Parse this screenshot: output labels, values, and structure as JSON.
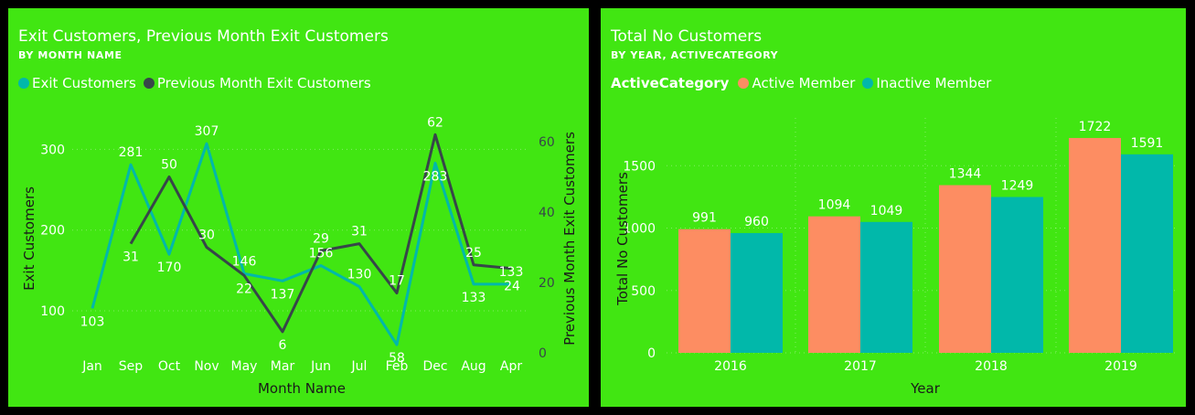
{
  "chart_data": [
    {
      "type": "line",
      "title": "Exit Customers, Previous Month Exit Customers",
      "subtitle": "BY MONTH NAME",
      "xlabel": "Month Name",
      "ylabel": "Exit Customers",
      "y2label": "Previous Month Exit Customers",
      "categories": [
        "Jan",
        "Sep",
        "Oct",
        "Nov",
        "May",
        "Mar",
        "Jun",
        "Jul",
        "Feb",
        "Dec",
        "Aug",
        "Apr"
      ],
      "ylim": [
        60,
        315
      ],
      "y2lim": [
        0,
        62
      ],
      "yticks": [
        100,
        200,
        300
      ],
      "y2ticks": [
        0,
        20,
        40,
        60
      ],
      "grid": true,
      "legend_position": "top-left",
      "series": [
        {
          "name": "Exit Customers",
          "color": "#01b8aa",
          "axis": "left",
          "values": [
            103,
            281,
            170,
            307,
            146,
            137,
            156,
            130,
            58,
            283,
            133,
            133
          ]
        },
        {
          "name": "Previous Month Exit Customers",
          "color": "#374649",
          "axis": "right",
          "values": [
            null,
            31,
            50,
            30,
            22,
            6,
            29,
            31,
            17,
            62,
            25,
            24
          ]
        }
      ]
    },
    {
      "type": "bar",
      "title": "Total No Customers",
      "subtitle": "BY YEAR, ACTIVECATEGORY",
      "legend_title": "ActiveCategory",
      "xlabel": "Year",
      "ylabel": "Total No Customers",
      "categories": [
        "2016",
        "2017",
        "2018",
        "2019"
      ],
      "ylim": [
        0,
        1800
      ],
      "yticks": [
        0,
        500,
        1000,
        1500
      ],
      "grid": true,
      "legend_position": "top-left",
      "series": [
        {
          "name": "Active Member",
          "color": "#fd8d62",
          "values": [
            991,
            1094,
            1344,
            1722
          ]
        },
        {
          "name": "Inactive Member",
          "color": "#01b8aa",
          "values": [
            960,
            1049,
            1249,
            1591
          ]
        }
      ]
    }
  ]
}
